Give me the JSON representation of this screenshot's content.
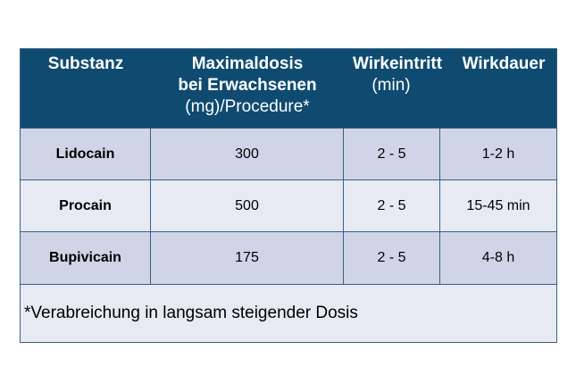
{
  "table": {
    "headers": {
      "substance": "Substanz",
      "maxdose_line1": "Maximaldosis",
      "maxdose_line2": "bei Erwachsenen",
      "maxdose_line3": "(mg)/Procedure*",
      "onset_line1": "Wirkeintritt",
      "onset_line2": "(min)",
      "duration": "Wirkdauer"
    },
    "rows": [
      {
        "substance": "Lidocain",
        "maxdose": "300",
        "onset": "2 - 5",
        "duration": "1-2 h"
      },
      {
        "substance": "Procain",
        "maxdose": "500",
        "onset": "2 - 5",
        "duration": "15-45 min"
      },
      {
        "substance": "Bupivicain",
        "maxdose": "175",
        "onset": "2 - 5",
        "duration": "4-8 h"
      }
    ],
    "footnote": "*Verabreichung in langsam steigender Dosis"
  },
  "colors": {
    "header_bg": "#0f4b70",
    "header_text": "#ffffff",
    "row_odd": "#cfd5e6",
    "row_even": "#e7eaf3",
    "border": "#3a5f86"
  }
}
